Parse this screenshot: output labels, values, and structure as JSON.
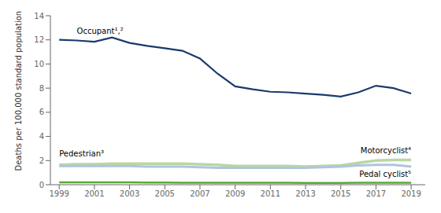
{
  "chart_data": {
    "type": "line",
    "ylabel": "Deaths per 100,000 standard population",
    "x": [
      1999,
      2000,
      2001,
      2002,
      2003,
      2004,
      2005,
      2006,
      2007,
      2008,
      2009,
      2010,
      2011,
      2012,
      2013,
      2014,
      2015,
      2016,
      2017,
      2018,
      2019
    ],
    "series": [
      {
        "name": "Motorcyclist⁴",
        "color": "#b8d8a0",
        "values": [
          1.65,
          1.7,
          1.7,
          1.75,
          1.75,
          1.75,
          1.75,
          1.75,
          1.7,
          1.65,
          1.55,
          1.55,
          1.55,
          1.55,
          1.5,
          1.55,
          1.6,
          1.8,
          2.0,
          2.05,
          2.05
        ]
      },
      {
        "name": "Pedestrian³",
        "color": "#b0c4de",
        "values": [
          1.55,
          1.55,
          1.55,
          1.55,
          1.55,
          1.5,
          1.5,
          1.5,
          1.45,
          1.4,
          1.4,
          1.4,
          1.4,
          1.4,
          1.4,
          1.45,
          1.5,
          1.6,
          1.65,
          1.65,
          1.5
        ]
      },
      {
        "name": "Pedal cyclist⁵",
        "color": "#5aaa32",
        "values": [
          0.2,
          0.2,
          0.2,
          0.2,
          0.2,
          0.18,
          0.18,
          0.17,
          0.17,
          0.16,
          0.16,
          0.16,
          0.16,
          0.16,
          0.15,
          0.15,
          0.15,
          0.16,
          0.16,
          0.16,
          0.16
        ]
      },
      {
        "name": "Occupant¹,²",
        "color": "#1b3a6b",
        "values": [
          12.0,
          11.95,
          11.85,
          12.2,
          11.75,
          11.5,
          11.3,
          11.1,
          10.45,
          9.2,
          8.15,
          7.9,
          7.7,
          7.65,
          7.55,
          7.45,
          7.3,
          7.65,
          8.2,
          8.0,
          7.55
        ]
      }
    ],
    "xlim": [
      1998.5,
      2019.8
    ],
    "ylim": [
      0,
      14
    ],
    "xticks": [
      1999,
      2001,
      2003,
      2005,
      2007,
      2009,
      2011,
      2013,
      2015,
      2017,
      2019
    ],
    "yticks": [
      0,
      2,
      4,
      6,
      8,
      10,
      12,
      14
    ],
    "grid": false
  }
}
